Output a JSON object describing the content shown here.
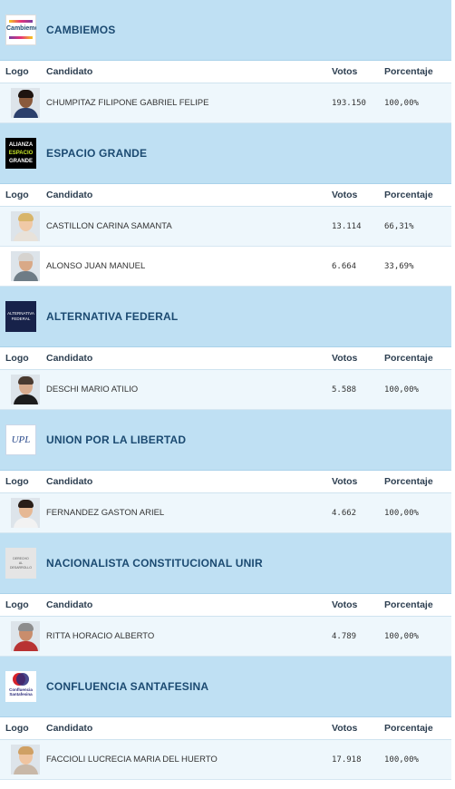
{
  "columns": {
    "logo": "Logo",
    "candidato": "Candidato",
    "votos": "Votos",
    "porcentaje": "Porcentaje"
  },
  "parties": [
    {
      "name": "CAMBIEMOS",
      "logo_text": [
        "Cambiemos"
      ],
      "logo_icon": "cambiemos-logo-icon",
      "logo_bg": "#ffffff",
      "logo_fg": "#1b4a71",
      "candidates": [
        {
          "name": "CHUMPITAZ FILIPONE GABRIEL FELIPE",
          "votos": "193.150",
          "porcentaje": "100,00%",
          "skin": "#8a5a3c",
          "hair": "#1e1410",
          "shirt": "#2b3f6b"
        }
      ]
    },
    {
      "name": "ESPACIO GRANDE",
      "logo_text": [
        "ALIANZA",
        "ESPACIO",
        "GRANDE"
      ],
      "logo_icon": "espacio-grande-logo-icon",
      "logo_bg": "#000000",
      "logo_fg": "#ffffff",
      "candidates": [
        {
          "name": "CASTILLON CARINA SAMANTA",
          "votos": "13.114",
          "porcentaje": "66,31%",
          "skin": "#f0c9a6",
          "hair": "#d8b56a",
          "shirt": "#e8e2da"
        },
        {
          "name": "ALONSO JUAN MANUEL",
          "votos": "6.664",
          "porcentaje": "33,69%",
          "skin": "#d9a987",
          "hair": "#d6d3cf",
          "shirt": "#6e7c86"
        }
      ]
    },
    {
      "name": "ALTERNATIVA FEDERAL",
      "logo_text": [
        "ALTERNATIVA",
        "FEDERAL"
      ],
      "logo_icon": "alternativa-federal-logo-icon",
      "logo_bg": "#17224a",
      "logo_fg": "#ffffff",
      "candidates": [
        {
          "name": "DESCHI MARIO ATILIO",
          "votos": "5.588",
          "porcentaje": "100,00%",
          "skin": "#d8ab8d",
          "hair": "#4a3a30",
          "shirt": "#1c1c1c"
        }
      ]
    },
    {
      "name": "UNION POR LA LIBERTAD",
      "logo_text": [
        "UPL"
      ],
      "logo_icon": "upl-logo-icon",
      "logo_bg": "#ffffff",
      "logo_fg": "#2a4a8c",
      "candidates": [
        {
          "name": "FERNANDEZ GASTON ARIEL",
          "votos": "4.662",
          "porcentaje": "100,00%",
          "skin": "#e6b894",
          "hair": "#2a1e18",
          "shirt": "#f2f2f2"
        }
      ]
    },
    {
      "name": "NACIONALISTA CONSTITUCIONAL UNIR",
      "logo_text": [
        "DERECHO",
        "AL",
        "DESARROLLO"
      ],
      "logo_icon": "unir-logo-icon",
      "logo_bg": "#e5e5e5",
      "logo_fg": "#555555",
      "candidates": [
        {
          "name": "RITTA HORACIO ALBERTO",
          "votos": "4.789",
          "porcentaje": "100,00%",
          "skin": "#c98d6c",
          "hair": "#8d8d8d",
          "shirt": "#b83232"
        }
      ]
    },
    {
      "name": "CONFLUENCIA SANTAFESINA",
      "logo_text": [
        "Confluencia",
        "Santafesina"
      ],
      "logo_icon": "confluencia-logo-icon",
      "logo_bg": "#ffffff",
      "logo_fg": "#2a2a7a",
      "candidates": [
        {
          "name": "FACCIOLI LUCRECIA MARIA DEL HUERTO",
          "votos": "17.918",
          "porcentaje": "100,00%",
          "skin": "#efc4a0",
          "hair": "#cfa064",
          "shirt": "#c8b8a8"
        }
      ]
    }
  ]
}
